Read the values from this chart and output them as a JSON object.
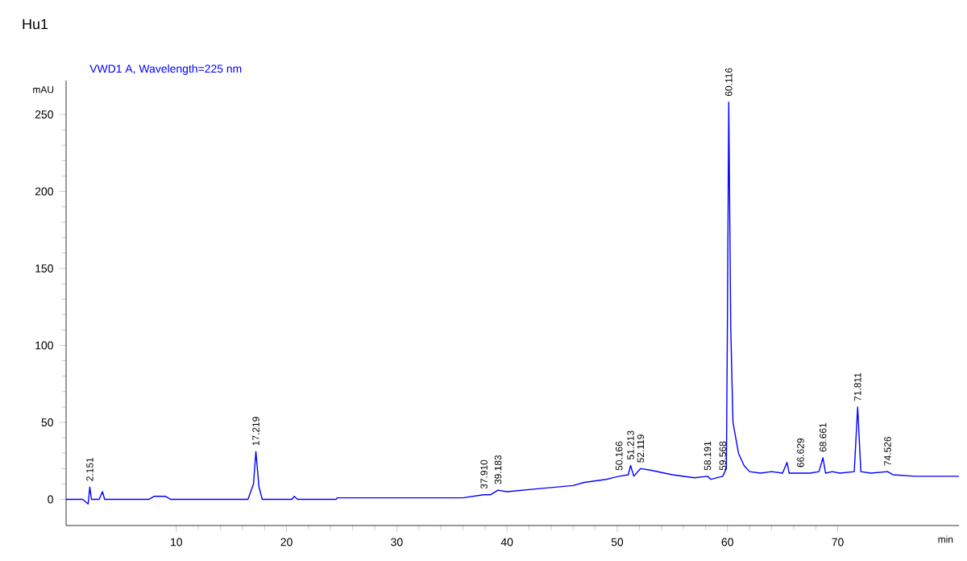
{
  "chart_data": {
    "type": "line",
    "title": "VWD1 A, Wavelength=225 nm",
    "xlabel": "min",
    "ylabel": "mAU",
    "xlim": [
      0,
      81
    ],
    "xticks": [
      10,
      20,
      30,
      40,
      50,
      60,
      70
    ],
    "ylim": [
      -17,
      272
    ],
    "yticks": [
      0,
      50,
      100,
      150,
      200,
      250
    ],
    "grid": false,
    "marker": "none",
    "line_style": "solid",
    "series": [
      {
        "color": "#0000ff",
        "x": [
          0,
          1.5,
          2.0,
          2.151,
          2.3,
          3.0,
          3.3,
          3.5,
          7.5,
          8,
          9,
          9.5,
          16.5,
          17.0,
          17.219,
          17.5,
          17.8,
          20.5,
          20.7,
          21,
          24.5,
          24.6,
          36,
          37.91,
          38.5,
          39.183,
          40,
          43,
          46,
          47,
          49,
          50.166,
          51.0,
          51.213,
          51.5,
          52.119,
          53,
          55,
          57,
          58.191,
          58.5,
          59.568,
          59.9,
          60.0,
          60.116,
          60.3,
          60.5,
          61,
          61.5,
          62,
          63,
          64,
          65,
          65.4,
          65.6,
          66.629,
          67.5,
          68.3,
          68.661,
          68.9,
          69.5,
          70.2,
          71.5,
          71.811,
          72.1,
          73,
          74.526,
          75,
          77,
          80,
          81
        ],
        "values": [
          0,
          0,
          -3,
          8,
          0,
          0,
          5,
          0,
          0,
          2,
          2,
          0,
          0,
          10,
          31,
          8,
          0,
          0,
          2,
          0,
          0,
          1,
          1,
          3,
          3,
          6,
          5,
          7,
          9,
          11,
          13,
          15,
          16,
          22,
          15,
          20,
          19,
          16,
          14,
          15,
          13,
          15,
          20,
          120,
          258,
          110,
          50,
          30,
          22,
          18,
          17,
          18,
          17,
          24,
          17,
          17,
          17,
          18,
          27,
          17,
          18,
          17,
          18,
          60,
          18,
          17,
          18,
          16,
          15,
          15,
          15
        ]
      }
    ],
    "annotations": [
      "Hu1",
      {
        "text": "2.151",
        "x": 2.151,
        "y": 8
      },
      {
        "text": "17.219",
        "x": 17.219,
        "y": 31
      },
      {
        "text": "37.910",
        "x": 37.91,
        "y": 3
      },
      {
        "text": "39.183",
        "x": 39.183,
        "y": 6
      },
      {
        "text": "50.166",
        "x": 50.166,
        "y": 15
      },
      {
        "text": "51.213",
        "x": 51.213,
        "y": 22
      },
      {
        "text": "52.119",
        "x": 52.119,
        "y": 20
      },
      {
        "text": "58.191",
        "x": 58.191,
        "y": 15
      },
      {
        "text": "59.568",
        "x": 59.568,
        "y": 15
      },
      {
        "text": "60.116",
        "x": 60.116,
        "y": 258
      },
      {
        "text": "66.629",
        "x": 66.629,
        "y": 17
      },
      {
        "text": "68.661",
        "x": 68.661,
        "y": 27
      },
      {
        "text": "71.811",
        "x": 71.811,
        "y": 60
      },
      {
        "text": "74.526",
        "x": 74.526,
        "y": 18
      }
    ]
  }
}
